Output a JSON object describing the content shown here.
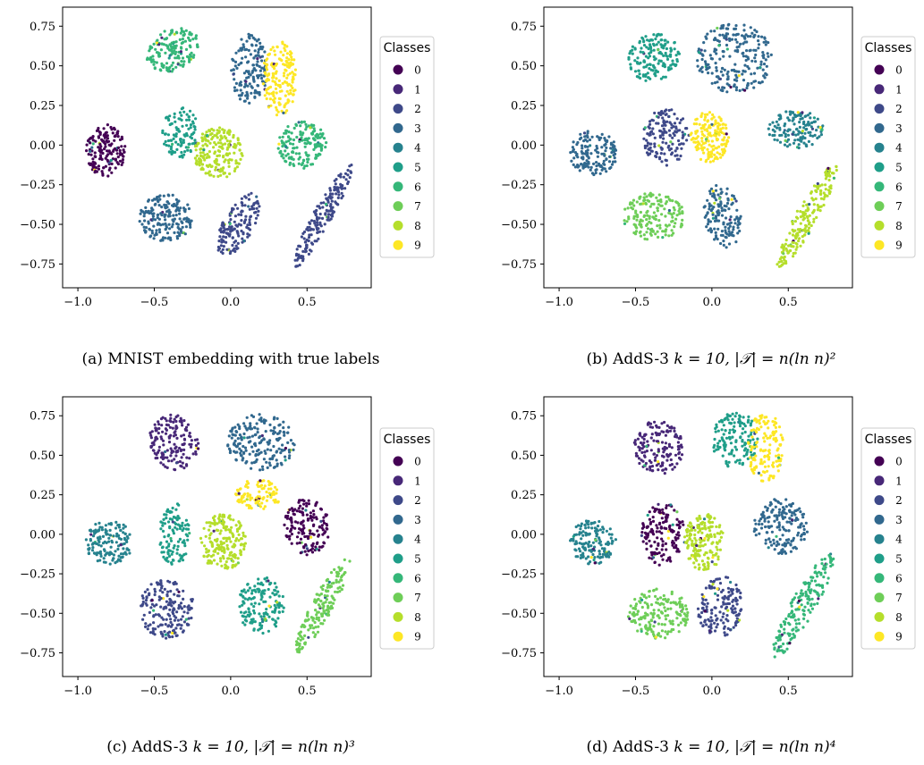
{
  "legend": {
    "title": "Classes",
    "labels": [
      "0",
      "1",
      "2",
      "3",
      "4",
      "5",
      "6",
      "7",
      "8",
      "9"
    ],
    "colors": [
      "#440154",
      "#482878",
      "#3e4989",
      "#31688e",
      "#26828e",
      "#1f9e89",
      "#35b779",
      "#6ece58",
      "#b5de2b",
      "#fde725"
    ]
  },
  "axes": {
    "xlim": [
      -1.1,
      0.92
    ],
    "ylim": [
      -0.9,
      0.87
    ],
    "xticks": [
      -1.0,
      -0.5,
      0.0,
      0.5
    ],
    "xtick_labels": [
      "−1.0",
      "−0.5",
      "0.0",
      "0.5"
    ],
    "yticks": [
      -0.75,
      -0.5,
      -0.25,
      0.0,
      0.25,
      0.5,
      0.75
    ],
    "ytick_labels": [
      "−0.75",
      "−0.50",
      "−0.25",
      "0.00",
      "0.25",
      "0.50",
      "0.75"
    ]
  },
  "captions": {
    "a": "(a) MNIST embedding with true labels",
    "b_prefix": "(b) AddS-3 ",
    "b_formula": "k = 10, |𝒯| = n(ln n)²",
    "c_prefix": "(c) AddS-3 ",
    "c_formula": "k = 10, |𝒯| = n(ln n)³",
    "d_prefix": "(d) AddS-3 ",
    "d_formula": "k = 10, |𝒯| = n(ln n)⁴"
  },
  "chart_data": [
    {
      "type": "scatter",
      "title": "",
      "xlabel": "",
      "ylabel": "",
      "xlim": [
        -1.1,
        0.92
      ],
      "ylim": [
        -0.9,
        0.87
      ],
      "clusters": [
        {
          "cx": -0.82,
          "cy": -0.03,
          "rx": 0.13,
          "ry": 0.17,
          "rot": 0,
          "n": 160,
          "color": 0
        },
        {
          "cx": -0.38,
          "cy": 0.6,
          "rx": 0.18,
          "ry": 0.13,
          "rot": 25,
          "n": 160,
          "color": 6
        },
        {
          "cx": -0.33,
          "cy": 0.08,
          "rx": 0.12,
          "ry": 0.16,
          "rot": 0,
          "n": 110,
          "color": 5
        },
        {
          "cx": -0.42,
          "cy": -0.46,
          "rx": 0.18,
          "ry": 0.15,
          "rot": 0,
          "n": 180,
          "color": 3
        },
        {
          "cx": -0.08,
          "cy": -0.05,
          "rx": 0.16,
          "ry": 0.16,
          "rot": 0,
          "n": 200,
          "color": 8
        },
        {
          "cx": 0.05,
          "cy": -0.5,
          "rx": 0.22,
          "ry": 0.1,
          "rot": 60,
          "n": 150,
          "color": 2
        },
        {
          "cx": 0.12,
          "cy": 0.48,
          "rx": 0.12,
          "ry": 0.22,
          "rot": 0,
          "n": 150,
          "color": 3
        },
        {
          "cx": 0.32,
          "cy": 0.42,
          "rx": 0.11,
          "ry": 0.24,
          "rot": 0,
          "n": 170,
          "color": 9
        },
        {
          "cx": 0.47,
          "cy": 0.0,
          "rx": 0.16,
          "ry": 0.15,
          "rot": 0,
          "n": 160,
          "color": 6
        },
        {
          "cx": 0.6,
          "cy": -0.45,
          "rx": 0.38,
          "ry": 0.06,
          "rot": 60,
          "n": 180,
          "color": 2
        }
      ]
    },
    {
      "type": "scatter",
      "title": "",
      "xlabel": "",
      "ylabel": "",
      "xlim": [
        -1.1,
        0.92
      ],
      "ylim": [
        -0.9,
        0.87
      ],
      "clusters": [
        {
          "cx": -0.78,
          "cy": -0.05,
          "rx": 0.16,
          "ry": 0.14,
          "rot": 0,
          "n": 150,
          "color": 3
        },
        {
          "cx": -0.38,
          "cy": 0.55,
          "rx": 0.17,
          "ry": 0.15,
          "rot": 20,
          "n": 160,
          "color": 5
        },
        {
          "cx": -0.3,
          "cy": 0.05,
          "rx": 0.15,
          "ry": 0.18,
          "rot": 0,
          "n": 150,
          "color": 2
        },
        {
          "cx": -0.38,
          "cy": -0.45,
          "rx": 0.2,
          "ry": 0.15,
          "rot": 0,
          "n": 170,
          "color": 7
        },
        {
          "cx": -0.02,
          "cy": 0.05,
          "rx": 0.13,
          "ry": 0.16,
          "rot": 0,
          "n": 170,
          "color": 9
        },
        {
          "cx": 0.15,
          "cy": 0.55,
          "rx": 0.25,
          "ry": 0.22,
          "rot": 0,
          "n": 230,
          "color": 3
        },
        {
          "cx": 0.55,
          "cy": 0.1,
          "rx": 0.18,
          "ry": 0.12,
          "rot": 0,
          "n": 140,
          "color": 4
        },
        {
          "cx": 0.07,
          "cy": -0.45,
          "rx": 0.12,
          "ry": 0.2,
          "rot": 10,
          "n": 140,
          "color": 3
        },
        {
          "cx": 0.62,
          "cy": -0.45,
          "rx": 0.38,
          "ry": 0.07,
          "rot": 60,
          "n": 190,
          "color": 8
        }
      ]
    },
    {
      "type": "scatter",
      "title": "",
      "xlabel": "",
      "ylabel": "",
      "xlim": [
        -1.1,
        0.92
      ],
      "ylim": [
        -0.9,
        0.87
      ],
      "clusters": [
        {
          "cx": -0.8,
          "cy": -0.05,
          "rx": 0.16,
          "ry": 0.14,
          "rot": 0,
          "n": 150,
          "color": 4
        },
        {
          "cx": -0.37,
          "cy": 0.58,
          "rx": 0.16,
          "ry": 0.18,
          "rot": 20,
          "n": 160,
          "color": 1
        },
        {
          "cx": -0.37,
          "cy": 0.0,
          "rx": 0.1,
          "ry": 0.2,
          "rot": 0,
          "n": 110,
          "color": 5
        },
        {
          "cx": -0.42,
          "cy": -0.47,
          "rx": 0.18,
          "ry": 0.19,
          "rot": 0,
          "n": 180,
          "color": 2
        },
        {
          "cx": -0.05,
          "cy": -0.05,
          "rx": 0.15,
          "ry": 0.18,
          "rot": 0,
          "n": 190,
          "color": 8
        },
        {
          "cx": 0.2,
          "cy": 0.58,
          "rx": 0.22,
          "ry": 0.18,
          "rot": 0,
          "n": 200,
          "color": 3
        },
        {
          "cx": 0.18,
          "cy": 0.25,
          "rx": 0.15,
          "ry": 0.1,
          "rot": 0,
          "n": 100,
          "color": 9
        },
        {
          "cx": 0.5,
          "cy": 0.05,
          "rx": 0.15,
          "ry": 0.18,
          "rot": 0,
          "n": 160,
          "color": 0
        },
        {
          "cx": 0.2,
          "cy": -0.45,
          "rx": 0.15,
          "ry": 0.18,
          "rot": 0,
          "n": 150,
          "color": 5
        },
        {
          "cx": 0.6,
          "cy": -0.45,
          "rx": 0.35,
          "ry": 0.07,
          "rot": 60,
          "n": 170,
          "color": 7
        }
      ]
    },
    {
      "type": "scatter",
      "title": "",
      "xlabel": "",
      "ylabel": "",
      "xlim": [
        -1.1,
        0.92
      ],
      "ylim": [
        -0.9,
        0.87
      ],
      "clusters": [
        {
          "cx": -0.78,
          "cy": -0.05,
          "rx": 0.16,
          "ry": 0.14,
          "rot": 0,
          "n": 150,
          "color": 4
        },
        {
          "cx": -0.35,
          "cy": 0.55,
          "rx": 0.16,
          "ry": 0.17,
          "rot": 20,
          "n": 160,
          "color": 1
        },
        {
          "cx": -0.32,
          "cy": 0.0,
          "rx": 0.14,
          "ry": 0.2,
          "rot": 0,
          "n": 150,
          "color": 0
        },
        {
          "cx": -0.35,
          "cy": -0.5,
          "rx": 0.2,
          "ry": 0.16,
          "rot": 0,
          "n": 180,
          "color": 7
        },
        {
          "cx": -0.05,
          "cy": -0.05,
          "rx": 0.13,
          "ry": 0.18,
          "rot": 0,
          "n": 180,
          "color": 8
        },
        {
          "cx": 0.15,
          "cy": 0.6,
          "rx": 0.15,
          "ry": 0.18,
          "rot": 0,
          "n": 140,
          "color": 5
        },
        {
          "cx": 0.35,
          "cy": 0.55,
          "rx": 0.12,
          "ry": 0.22,
          "rot": 0,
          "n": 140,
          "color": 9
        },
        {
          "cx": 0.45,
          "cy": 0.05,
          "rx": 0.18,
          "ry": 0.18,
          "rot": 0,
          "n": 170,
          "color": 3
        },
        {
          "cx": 0.05,
          "cy": -0.45,
          "rx": 0.15,
          "ry": 0.2,
          "rot": 0,
          "n": 160,
          "color": 2
        },
        {
          "cx": 0.6,
          "cy": -0.45,
          "rx": 0.38,
          "ry": 0.08,
          "rot": 60,
          "n": 190,
          "color": 6
        }
      ]
    }
  ]
}
